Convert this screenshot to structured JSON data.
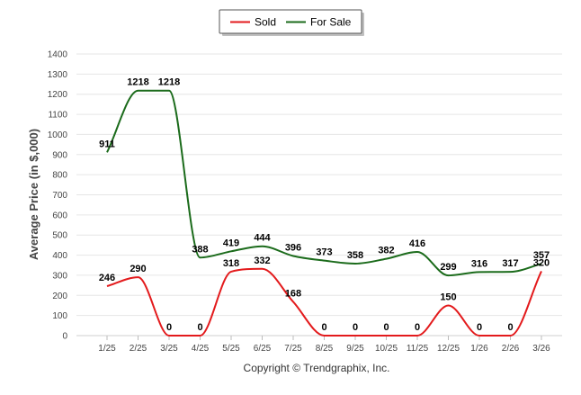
{
  "chart_data": {
    "type": "line",
    "title": "",
    "xlabel": "",
    "ylabel": "Average Price (in $,000)",
    "ylim": [
      0,
      1400
    ],
    "yticks": [
      0,
      100,
      200,
      300,
      400,
      500,
      600,
      700,
      800,
      900,
      1000,
      1100,
      1200,
      1300,
      1400
    ],
    "grid": true,
    "legend_position": "top-center",
    "categories": [
      "1/25",
      "2/25",
      "3/25",
      "4/25",
      "5/25",
      "6/25",
      "7/25",
      "8/25",
      "9/25",
      "10/25",
      "11/25",
      "12/25",
      "1/26",
      "2/26",
      "3/26"
    ],
    "series": [
      {
        "name": "Sold",
        "color": "#e31a1c",
        "values": [
          246,
          290,
          0,
          0,
          318,
          332,
          168,
          0,
          0,
          0,
          0,
          150,
          0,
          0,
          320
        ],
        "labels": [
          "246",
          "290",
          "0",
          "0",
          "318",
          "332",
          "168",
          "0",
          "0",
          "0",
          "0",
          "150",
          "0",
          "0",
          "320"
        ]
      },
      {
        "name": "For Sale",
        "color": "#1b6b1b",
        "values": [
          911,
          1218,
          1218,
          388,
          419,
          444,
          396,
          373,
          358,
          382,
          416,
          299,
          316,
          317,
          357
        ],
        "labels": [
          "911",
          "1218",
          "1218",
          "388",
          "419",
          "444",
          "396",
          "373",
          "358",
          "382",
          "416",
          "299",
          "316",
          "317",
          "357"
        ]
      }
    ],
    "footer": "Copyright © Trendgraphix, Inc."
  }
}
